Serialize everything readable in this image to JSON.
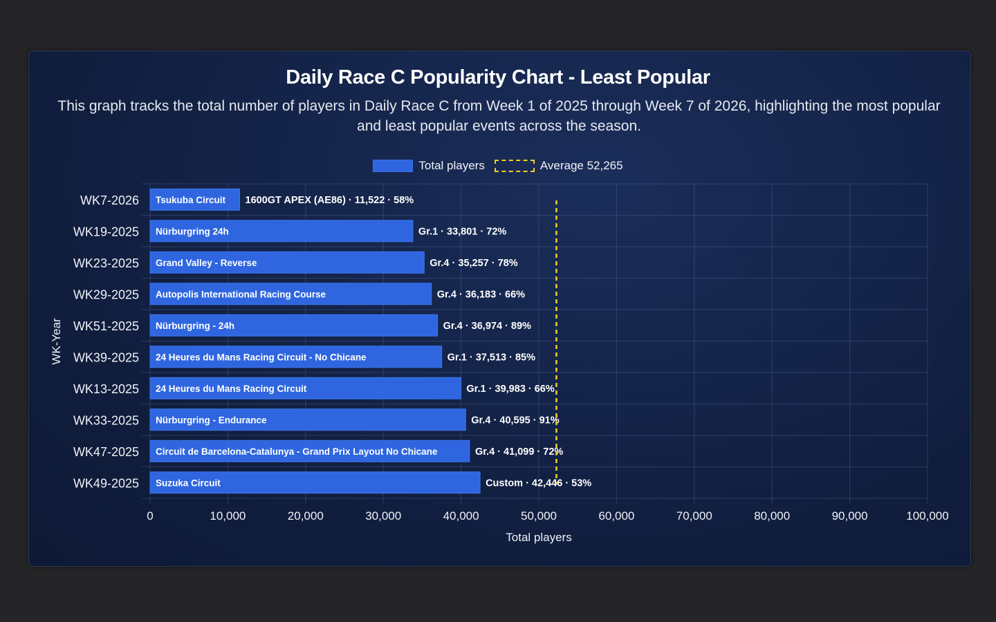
{
  "chart_data": {
    "type": "bar",
    "orientation": "horizontal",
    "title": "Daily Race C Popularity Chart - Least Popular",
    "subtitle": "This graph tracks the total number of players in Daily Race C from Week 1 of 2025 through Week 7 of 2026, highlighting the most popular and least popular events across the season.",
    "xlabel": "Total players",
    "ylabel": "WK-Year",
    "xlim": [
      0,
      100000
    ],
    "x_ticks": [
      "0",
      "10,000",
      "20,000",
      "30,000",
      "40,000",
      "50,000",
      "60,000",
      "70,000",
      "80,000",
      "90,000",
      "100,000"
    ],
    "x_tick_values": [
      0,
      10000,
      20000,
      30000,
      40000,
      50000,
      60000,
      70000,
      80000,
      90000,
      100000
    ],
    "grid": true,
    "legend": {
      "placement": "top-center",
      "entries": [
        {
          "label": "Total players",
          "style": "bar",
          "color": "#2f66e0"
        },
        {
          "label": "Average 52,265",
          "style": "dashed-line",
          "color": "#f2d21f"
        }
      ]
    },
    "average": 52265,
    "bar_color": "#2f66e0",
    "categories": [
      "WK7-2026",
      "WK19-2025",
      "WK23-2025",
      "WK29-2025",
      "WK51-2025",
      "WK39-2025",
      "WK13-2025",
      "WK33-2025",
      "WK47-2025",
      "WK49-2025"
    ],
    "values": [
      11522,
      33801,
      35257,
      36183,
      36974,
      37513,
      39983,
      40595,
      41099,
      42446
    ],
    "bar_labels": [
      "Tsukuba Circuit",
      "Nürburgring 24h",
      "Grand Valley - Reverse",
      "Autopolis International Racing Course",
      "Nürburgring - 24h",
      "24 Heures du Mans Racing Circuit - No Chicane",
      "24 Heures du Mans Racing Circuit",
      "Nürburgring - Endurance",
      "Circuit de Barcelona-Catalunya - Grand Prix Layout No Chicane",
      "Suzuka Circuit"
    ],
    "value_labels": [
      "1600GT APEX (AE86) · 11,522 · 58%",
      "Gr.1 · 33,801 · 72%",
      "Gr.4 · 35,257 · 78%",
      "Gr.4 · 36,183 · 66%",
      "Gr.4 · 36,974 · 89%",
      "Gr.1 · 37,513 · 85%",
      "Gr.1 · 39,983 · 66%",
      "Gr.4 · 40,595 · 91%",
      "Gr.4 · 41,099 · 72%",
      "Custom · 42,446 · 53%"
    ]
  }
}
